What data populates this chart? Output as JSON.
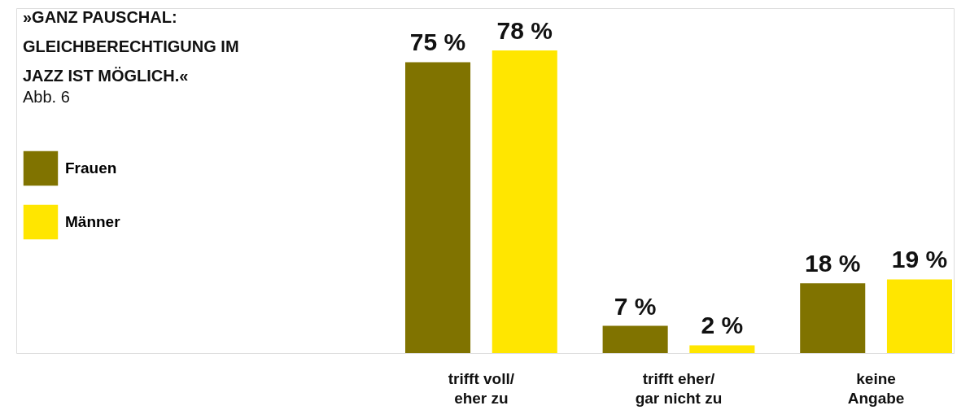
{
  "chart_data": {
    "type": "bar",
    "title": "»GANZ PAUSCHAL: GLEICHBERECHTIGUNG IM JAZZ IST MÖGLICH.«",
    "subtitle": "Abb. 6",
    "categories": [
      "trifft voll/ eher zu",
      "trifft eher/ gar nicht zu",
      "keine Angabe"
    ],
    "series": [
      {
        "name": "Frauen",
        "color": "#807300",
        "values": [
          75,
          7,
          18
        ],
        "value_labels": [
          "75 %",
          "7 %",
          "18 %"
        ]
      },
      {
        "name": "Männer",
        "color": "#ffe600",
        "values": [
          78,
          2,
          19
        ],
        "value_labels": [
          "78 %",
          "2 %",
          "19 %"
        ]
      }
    ],
    "legend": "left",
    "grid": false
  }
}
